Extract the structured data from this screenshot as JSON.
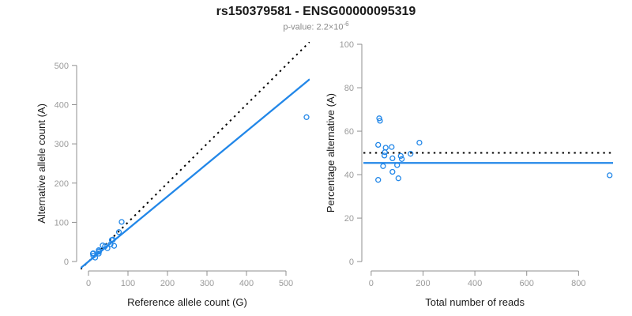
{
  "header": {
    "title": "rs150379581 - ENSG00000095319",
    "p_value_label": "p-value: 2.2×10",
    "p_value_exponent": "-6"
  },
  "colors": {
    "point_blue": "#2287E8",
    "fit_blue": "#2287E8",
    "dotted_black": "#000000",
    "axis_gray": "#8f8f8f",
    "tick_label_gray": "#9a9a9a",
    "axis_title_color": "#1a1a1a",
    "subtitle_gray": "#8a8a8a"
  },
  "chart_data": [
    {
      "type": "scatter",
      "title": "",
      "xlabel": "Reference allele count (G)",
      "ylabel": "Alternative allele count (A)",
      "xticks": [
        0,
        100,
        200,
        300,
        400,
        500
      ],
      "yticks": [
        0,
        100,
        200,
        300,
        400,
        500
      ],
      "xlim": [
        -20,
        560
      ],
      "ylim": [
        -20,
        560
      ],
      "grid": false,
      "point_color": "#2287E8",
      "points": [
        [
          11,
          20
        ],
        [
          12,
          21
        ],
        [
          12,
          15
        ],
        [
          17,
          10
        ],
        [
          26,
          20
        ],
        [
          26,
          25
        ],
        [
          27,
          26
        ],
        [
          26,
          29
        ],
        [
          36,
          41
        ],
        [
          42,
          39
        ],
        [
          48,
          34
        ],
        [
          56,
          44
        ],
        [
          59,
          55
        ],
        [
          62,
          56
        ],
        [
          65,
          40
        ],
        [
          77,
          75
        ],
        [
          84,
          101
        ],
        [
          552,
          368
        ]
      ],
      "lines": [
        {
          "name": "identity-line",
          "slope": 1,
          "intercept": 0,
          "style": "dotted",
          "color": "#000000",
          "width": 2
        },
        {
          "name": "fit-line",
          "slope": 0.83,
          "intercept": 0,
          "style": "solid",
          "color": "#2287E8",
          "width": 2.3
        }
      ]
    },
    {
      "type": "scatter",
      "title": "",
      "xlabel": "Total number of reads",
      "ylabel": "Percentage alternative (A)",
      "xticks": [
        0,
        200,
        400,
        600,
        800
      ],
      "yticks": [
        0,
        20,
        40,
        60,
        80,
        100
      ],
      "xlim": [
        -30,
        933
      ],
      "ylim": [
        -3.6,
        101.1
      ],
      "grid": false,
      "point_color": "#2287E8",
      "points": [
        [
          31,
          65.9
        ],
        [
          34,
          64.8
        ],
        [
          27,
          53.7
        ],
        [
          56,
          52.4
        ],
        [
          79,
          52.7
        ],
        [
          53,
          50.3
        ],
        [
          51,
          48.8
        ],
        [
          186,
          54.7
        ],
        [
          82,
          47.5
        ],
        [
          114,
          48.6
        ],
        [
          118,
          47.2
        ],
        [
          152,
          49.6
        ],
        [
          46,
          43.9
        ],
        [
          100,
          44.4
        ],
        [
          82,
          41.3
        ],
        [
          27,
          37.6
        ],
        [
          105,
          38.3
        ],
        [
          920,
          39.7
        ]
      ],
      "lines": [
        {
          "name": "expected-50pct-line",
          "slope": 0,
          "intercept": 50,
          "style": "dotted",
          "color": "#000000",
          "width": 2
        },
        {
          "name": "fit-line",
          "slope": 0,
          "intercept": 45.4,
          "style": "solid",
          "color": "#2287E8",
          "width": 2.3
        }
      ]
    }
  ]
}
